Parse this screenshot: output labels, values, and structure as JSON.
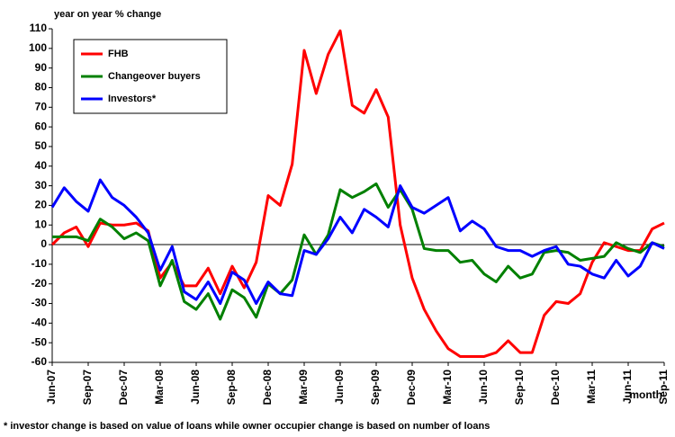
{
  "chart_data": {
    "type": "line",
    "y_label": "year on year % change",
    "x_label": "month",
    "footnote": "* investor change is based on value of loans while owner occupier change is based on number of loans",
    "categories": [
      "Jun-07",
      null,
      null,
      "Sep-07",
      null,
      null,
      "Dec-07",
      null,
      null,
      "Mar-08",
      null,
      null,
      "Jun-08",
      null,
      null,
      "Sep-08",
      null,
      null,
      "Dec-08",
      null,
      null,
      "Mar-09",
      null,
      null,
      "Jun-09",
      null,
      null,
      "Sep-09",
      null,
      null,
      "Dec-09",
      null,
      null,
      "Mar-10",
      null,
      null,
      "Jun-10",
      null,
      null,
      "Sep-10",
      null,
      null,
      "Dec-10",
      null,
      null,
      "Mar-11",
      null,
      null,
      "Jun-11",
      null,
      null,
      "Sep-11"
    ],
    "series": [
      {
        "name": "FHB",
        "color": "#ff0000",
        "values": [
          0,
          6,
          9,
          -1,
          11,
          10,
          10,
          11,
          7,
          -17,
          -9,
          -21,
          -21,
          -12,
          -25,
          -11,
          -22,
          -9,
          25,
          20,
          41,
          99,
          77,
          97,
          109,
          71,
          67,
          79,
          65,
          10,
          -17,
          -33,
          -44,
          -53,
          -57,
          -57,
          -57,
          -55,
          -49,
          -55,
          -55,
          -36,
          -29,
          -30,
          -25,
          -9,
          1,
          -1,
          -3,
          -3,
          8,
          11
        ]
      },
      {
        "name": "Changeover  buyers",
        "color": "#008000",
        "values": [
          4,
          4,
          4,
          2,
          13,
          9,
          3,
          6,
          2,
          -21,
          -8,
          -29,
          -33,
          -25,
          -38,
          -23,
          -27,
          -37,
          -20,
          -25,
          -18,
          5,
          -5,
          5,
          28,
          24,
          27,
          31,
          19,
          28,
          18,
          -2,
          -3,
          -3,
          -9,
          -8,
          -15,
          -19,
          -11,
          -17,
          -15,
          -4,
          -3,
          -4,
          -8,
          -7,
          -6,
          1,
          -2,
          -4,
          1,
          -1
        ]
      },
      {
        "name": "Investors*",
        "color": "#0000ff",
        "values": [
          19,
          29,
          22,
          17,
          33,
          24,
          20,
          14,
          6,
          -13,
          -1,
          -24,
          -28,
          -19,
          -30,
          -14,
          -18,
          -30,
          -19,
          -25,
          -26,
          -3,
          -5,
          3,
          14,
          6,
          18,
          14,
          9,
          30,
          19,
          16,
          20,
          24,
          7,
          12,
          8,
          -1,
          -3,
          -3,
          -6,
          -3,
          -1,
          -10,
          -11,
          -15,
          -17,
          -8,
          -16,
          -11,
          1,
          -2
        ]
      }
    ],
    "ylim": [
      -60,
      110
    ],
    "yticks": [
      -60,
      -50,
      -40,
      -30,
      -20,
      -10,
      0,
      10,
      20,
      30,
      40,
      50,
      60,
      70,
      80,
      90,
      100,
      110
    ],
    "legend": "upper left"
  }
}
